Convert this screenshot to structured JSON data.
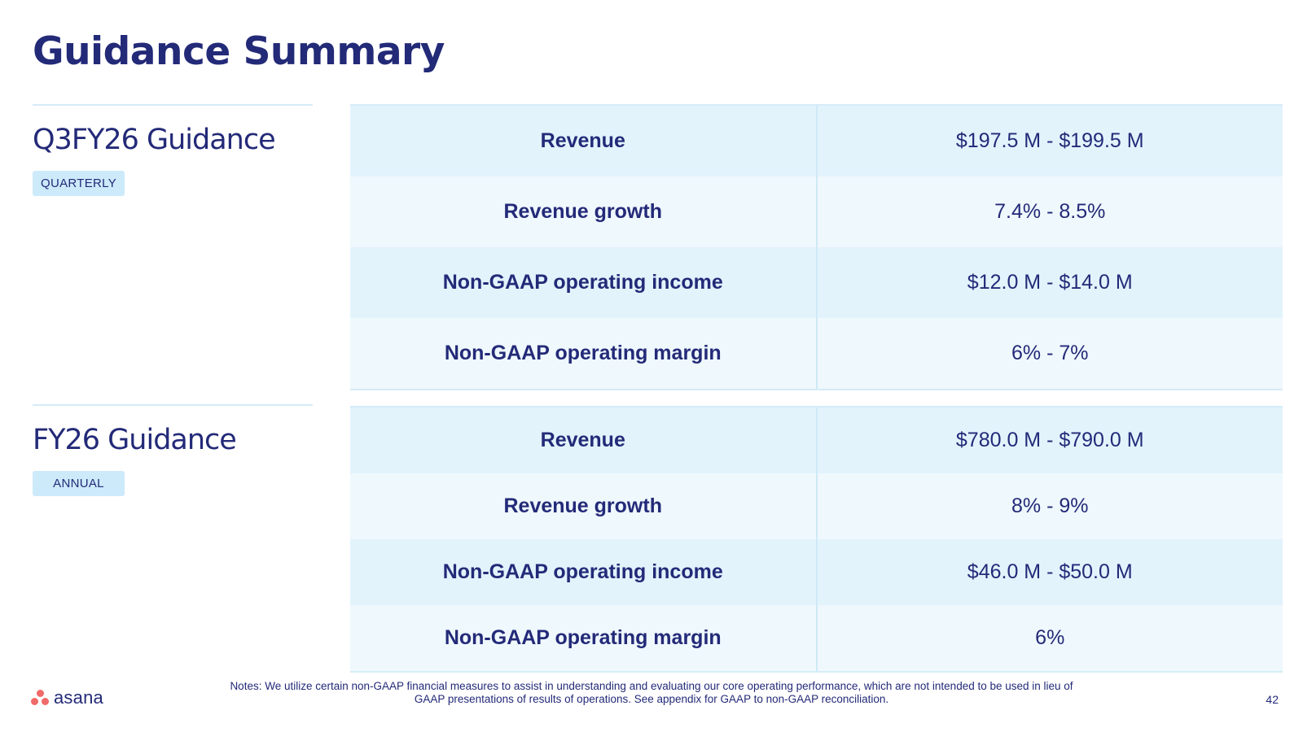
{
  "title": "Guidance Summary",
  "sections": [
    {
      "heading": "Q3FY26 Guidance",
      "badge": "QUARTERLY",
      "rows": [
        {
          "label": "Revenue",
          "value": "$197.5 M -  $199.5 M"
        },
        {
          "label": "Revenue growth",
          "value": "7.4% - 8.5%"
        },
        {
          "label": "Non-GAAP operating income",
          "value": "$12.0 M -  $14.0 M"
        },
        {
          "label": "Non-GAAP operating margin",
          "value": "6% - 7%"
        }
      ]
    },
    {
      "heading": "FY26 Guidance",
      "badge": "ANNUAL",
      "rows": [
        {
          "label": "Revenue",
          "value": "$780.0 M -  $790.0 M"
        },
        {
          "label": "Revenue growth",
          "value": "8% - 9%"
        },
        {
          "label": "Non-GAAP operating income",
          "value": "$46.0 M -  $50.0 M"
        },
        {
          "label": "Non-GAAP operating margin",
          "value": "6%"
        }
      ]
    }
  ],
  "footer": {
    "logo_text": "asana",
    "notes_line1": "Notes: We utilize certain non-GAAP financial measures to assist in understanding and evaluating our core operating performance, which are not intended to be used in lieu of",
    "notes_line2": "GAAP presentations of results of operations. See appendix for GAAP to non-GAAP reconciliation.",
    "page_number": "42"
  },
  "colors": {
    "title": "#232a78",
    "row_dark": "#e2f3fc",
    "row_light": "#eff8fd",
    "badge_bg": "#cdeafb",
    "logo_dots": "#f06a6a"
  }
}
